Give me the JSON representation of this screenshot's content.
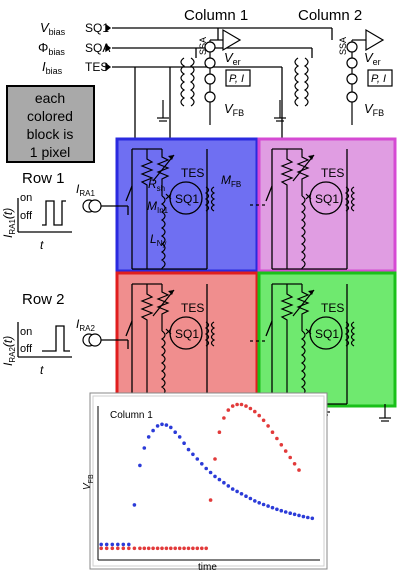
{
  "columns": {
    "c1": "Column 1",
    "c2": "Column 2"
  },
  "bias": {
    "vbias": "V",
    "vbias_sub": "bias",
    "vbias_target": "SQ1",
    "phibias": "Φ",
    "phibias_sub": "bias",
    "phibias_target": "SQA",
    "ibias": "I",
    "ibias_sub": "bias",
    "ibias_target": "TES"
  },
  "ssa": {
    "label": "SSA"
  },
  "readout": {
    "ver": "V",
    "ver_sub": "er",
    "pi": "P, I",
    "vfb": "V",
    "vfb_sub": "FB"
  },
  "note": {
    "line1": "each",
    "line2": "colored",
    "line3": "block is",
    "line4": "1 pixel"
  },
  "rows": {
    "r1": "Row 1",
    "r2": "Row 2",
    "on": "on",
    "off": "off",
    "t": "t",
    "ira": "I",
    "ira1_sub": "RA1",
    "ira2_sub": "RA2",
    "yaxis1_main": "I",
    "yaxis1_sub": "RA1",
    "yaxis1_tail": "(t)",
    "yaxis2_main": "I",
    "yaxis2_sub": "RA2",
    "yaxis2_tail": "(t)"
  },
  "pixel_labels": {
    "rsh": "R",
    "rsh_sub": "sh",
    "tes": "TES",
    "sq1": "SQ1",
    "mfb": "M",
    "mfb_sub": "FB",
    "min": "M",
    "min_sub": "In1",
    "lny": "L",
    "lny_sub": "Ny"
  },
  "pixel_colors": {
    "blue": "#6f6ff2",
    "magenta": "#e09de2",
    "red": "#f08e8e",
    "green": "#6fe96f"
  },
  "pixel_borders": {
    "blue": "#2a2adf",
    "magenta": "#d54ad3",
    "red": "#e01e1e",
    "green": "#19c019"
  },
  "chart_data": {
    "type": "scatter",
    "title": "Column 1",
    "xlabel": "time",
    "ylabel": "V",
    "ylabel_sub": "FB",
    "xlim": [
      0,
      1
    ],
    "ylim": [
      0,
      1
    ],
    "series": [
      {
        "color": "#2b3bd8",
        "points": [
          [
            0.01,
            0.08
          ],
          [
            0.035,
            0.08
          ],
          [
            0.06,
            0.08
          ],
          [
            0.085,
            0.08
          ],
          [
            0.11,
            0.08
          ],
          [
            0.135,
            0.08
          ],
          [
            0.16,
            0.33
          ],
          [
            0.185,
            0.58
          ],
          [
            0.205,
            0.69
          ],
          [
            0.225,
            0.76
          ],
          [
            0.245,
            0.8
          ],
          [
            0.265,
            0.83
          ],
          [
            0.285,
            0.84
          ],
          [
            0.305,
            0.835
          ],
          [
            0.325,
            0.82
          ],
          [
            0.345,
            0.79
          ],
          [
            0.365,
            0.76
          ],
          [
            0.385,
            0.72
          ],
          [
            0.405,
            0.68
          ],
          [
            0.425,
            0.65
          ],
          [
            0.445,
            0.62
          ],
          [
            0.465,
            0.59
          ],
          [
            0.485,
            0.56
          ],
          [
            0.505,
            0.535
          ],
          [
            0.525,
            0.51
          ],
          [
            0.545,
            0.49
          ],
          [
            0.565,
            0.47
          ],
          [
            0.585,
            0.45
          ],
          [
            0.605,
            0.43
          ],
          [
            0.625,
            0.415
          ],
          [
            0.645,
            0.4
          ],
          [
            0.665,
            0.385
          ],
          [
            0.685,
            0.37
          ],
          [
            0.705,
            0.355
          ],
          [
            0.725,
            0.343
          ],
          [
            0.745,
            0.332
          ],
          [
            0.765,
            0.322
          ],
          [
            0.785,
            0.312
          ],
          [
            0.805,
            0.302
          ],
          [
            0.825,
            0.293
          ],
          [
            0.845,
            0.285
          ],
          [
            0.865,
            0.277
          ],
          [
            0.885,
            0.27
          ],
          [
            0.905,
            0.263
          ],
          [
            0.925,
            0.256
          ],
          [
            0.945,
            0.25
          ],
          [
            0.965,
            0.245
          ]
        ]
      },
      {
        "color": "#e23a3a",
        "points": [
          [
            0.01,
            0.055
          ],
          [
            0.035,
            0.055
          ],
          [
            0.06,
            0.055
          ],
          [
            0.085,
            0.055
          ],
          [
            0.11,
            0.055
          ],
          [
            0.135,
            0.055
          ],
          [
            0.16,
            0.055
          ],
          [
            0.185,
            0.055
          ],
          [
            0.205,
            0.055
          ],
          [
            0.225,
            0.055
          ],
          [
            0.245,
            0.055
          ],
          [
            0.265,
            0.055
          ],
          [
            0.285,
            0.055
          ],
          [
            0.305,
            0.055
          ],
          [
            0.325,
            0.055
          ],
          [
            0.345,
            0.055
          ],
          [
            0.365,
            0.055
          ],
          [
            0.385,
            0.055
          ],
          [
            0.405,
            0.055
          ],
          [
            0.425,
            0.055
          ],
          [
            0.445,
            0.055
          ],
          [
            0.465,
            0.055
          ],
          [
            0.485,
            0.055
          ],
          [
            0.505,
            0.36
          ],
          [
            0.525,
            0.62
          ],
          [
            0.545,
            0.79
          ],
          [
            0.565,
            0.88
          ],
          [
            0.585,
            0.93
          ],
          [
            0.605,
            0.955
          ],
          [
            0.625,
            0.965
          ],
          [
            0.645,
            0.965
          ],
          [
            0.665,
            0.955
          ],
          [
            0.685,
            0.94
          ],
          [
            0.705,
            0.92
          ],
          [
            0.725,
            0.895
          ],
          [
            0.745,
            0.865
          ],
          [
            0.765,
            0.83
          ],
          [
            0.785,
            0.79
          ],
          [
            0.805,
            0.75
          ],
          [
            0.825,
            0.71
          ],
          [
            0.845,
            0.67
          ],
          [
            0.865,
            0.63
          ],
          [
            0.885,
            0.59
          ],
          [
            0.905,
            0.55
          ]
        ]
      }
    ]
  }
}
